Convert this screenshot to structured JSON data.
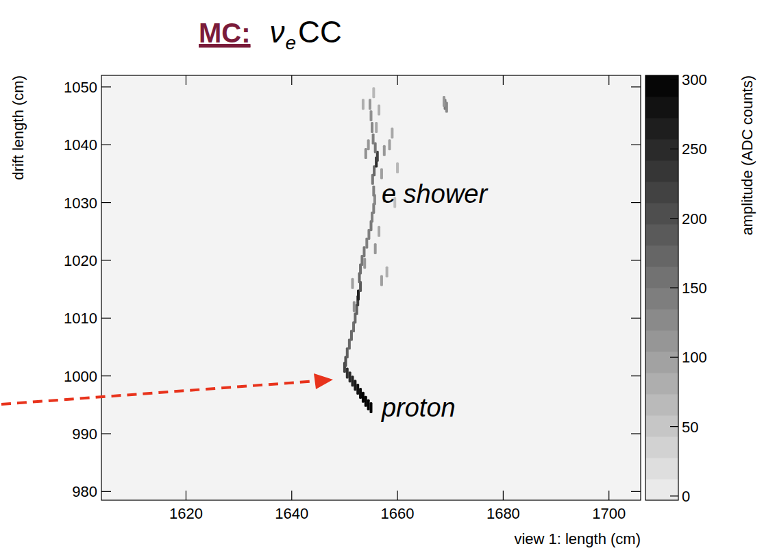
{
  "chart_data": {
    "type": "heatmap",
    "title": "MC:",
    "subtitle": [
      "ν",
      "e",
      "CC"
    ],
    "x_label": "view 1: length (cm)",
    "y_label": "drift length (cm)",
    "xlim": [
      1604,
      1706
    ],
    "xticks": [
      1620,
      1640,
      1660,
      1680,
      1700
    ],
    "ylim": [
      978.5,
      1052
    ],
    "yticks": [
      980,
      990,
      1000,
      1010,
      1020,
      1030,
      1040,
      1050
    ],
    "hits": {
      "x": [
        1650.0,
        1650.5,
        1651.0,
        1651.5,
        1652.0,
        1652.5,
        1653.0,
        1653.5,
        1654.0,
        1654.5,
        1655.0,
        1650.2,
        1650.5,
        1650.9,
        1651.3,
        1651.7,
        1652.0,
        1652.3,
        1652.5,
        1652.6,
        1653.0,
        1652.8,
        1653.0,
        1653.3,
        1653.7,
        1654.2,
        1654.6,
        1655.0,
        1655.2,
        1655.5,
        1655.7,
        1655.5,
        1655.3,
        1655.6,
        1656.0,
        1656.2,
        1655.8,
        1655.4,
        1655.2,
        1655.0,
        1654.8,
        1654.0,
        1654.5,
        1657.5,
        1658.5,
        1659.0,
        1657.0,
        1651.8,
        1651.5,
        1653.8,
        1655.8,
        1656.5,
        1657.5,
        1658.0,
        1657.0,
        1656.0,
        1656.5,
        1655.5,
        1653.5,
        1669.0,
        1669.3,
        1668.8,
        1660.0,
        1659.5
      ],
      "y": [
        1001.5,
        1000.5,
        999.8,
        999.1,
        998.4,
        997.7,
        997.0,
        996.3,
        995.6,
        995.0,
        994.5,
        1002.5,
        1004.0,
        1005.5,
        1007.0,
        1008.5,
        1010.0,
        1011.5,
        1013.0,
        1014.0,
        1015.5,
        1017.0,
        1018.5,
        1020.0,
        1021.5,
        1023.0,
        1024.5,
        1026.0,
        1027.5,
        1029.0,
        1030.5,
        1032.0,
        1034.0,
        1035.5,
        1037.0,
        1038.0,
        1039.5,
        1041.0,
        1043.0,
        1045.0,
        1047.0,
        1038.5,
        1040.0,
        1039.0,
        1040.0,
        1042.0,
        1035.0,
        1012.0,
        1016.0,
        1019.5,
        1022.0,
        1025.0,
        1031.0,
        1018.0,
        1016.5,
        1043.0,
        1046.0,
        1049.0,
        1047.0,
        1047.0,
        1046.5,
        1047.5,
        1036.0,
        1030.0
      ],
      "amplitude": [
        220,
        240,
        250,
        260,
        270,
        280,
        290,
        300,
        300,
        300,
        300,
        200,
        180,
        170,
        170,
        160,
        170,
        180,
        220,
        260,
        190,
        170,
        160,
        150,
        150,
        140,
        140,
        150,
        140,
        140,
        130,
        140,
        150,
        170,
        250,
        220,
        150,
        140,
        130,
        120,
        110,
        120,
        110,
        110,
        100,
        90,
        100,
        120,
        100,
        110,
        110,
        90,
        90,
        80,
        100,
        90,
        80,
        70,
        80,
        150,
        130,
        110,
        70,
        60
      ]
    },
    "colorbar": {
      "label": "amplitude (ADC counts)",
      "range": [
        -3,
        303
      ],
      "ticks": [
        0,
        50,
        100,
        150,
        200,
        250,
        300
      ]
    },
    "annotations": [
      {
        "text": "e shower",
        "x": 1657,
        "y": 1030
      },
      {
        "text": "proton",
        "x": 1657,
        "y": 993
      }
    ]
  }
}
